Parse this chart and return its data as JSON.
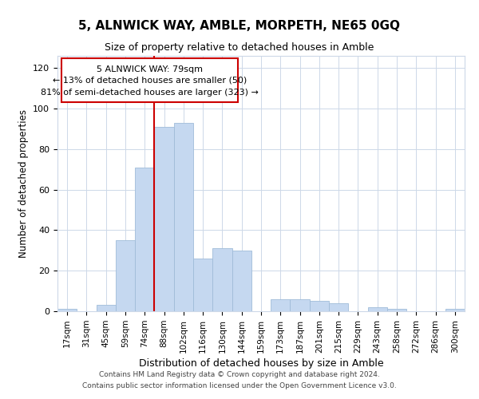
{
  "title": "5, ALNWICK WAY, AMBLE, MORPETH, NE65 0GQ",
  "subtitle": "Size of property relative to detached houses in Amble",
  "xlabel": "Distribution of detached houses by size in Amble",
  "ylabel": "Number of detached properties",
  "bar_color": "#c5d8f0",
  "bar_edge_color": "#a0bcd8",
  "tick_labels": [
    "17sqm",
    "31sqm",
    "45sqm",
    "59sqm",
    "74sqm",
    "88sqm",
    "102sqm",
    "116sqm",
    "130sqm",
    "144sqm",
    "159sqm",
    "173sqm",
    "187sqm",
    "201sqm",
    "215sqm",
    "229sqm",
    "243sqm",
    "258sqm",
    "272sqm",
    "286sqm",
    "300sqm"
  ],
  "bar_heights": [
    1,
    0,
    3,
    35,
    71,
    91,
    93,
    26,
    31,
    30,
    0,
    6,
    6,
    5,
    4,
    0,
    2,
    1,
    0,
    0,
    1
  ],
  "ylim": [
    0,
    126
  ],
  "yticks": [
    0,
    20,
    40,
    60,
    80,
    100,
    120
  ],
  "property_line_x": 4.5,
  "property_line_color": "#cc0000",
  "annotation_line1": "5 ALNWICK WAY: 79sqm",
  "annotation_line2": "← 13% of detached houses are smaller (50)",
  "annotation_line3": "81% of semi-detached houses are larger (323) →",
  "annotation_box_edge_color": "#cc0000",
  "footer_line1": "Contains HM Land Registry data © Crown copyright and database right 2024.",
  "footer_line2": "Contains public sector information licensed under the Open Government Licence v3.0.",
  "background_color": "#ffffff",
  "grid_color": "#cdd8e8"
}
